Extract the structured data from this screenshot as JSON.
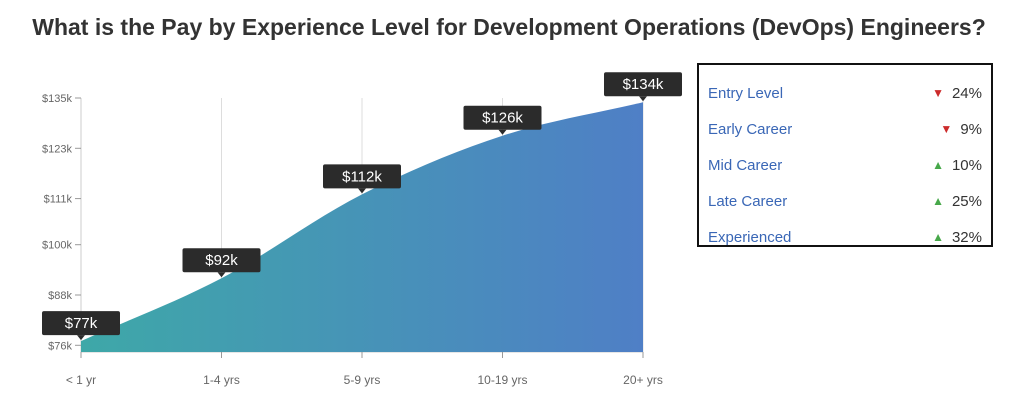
{
  "title": "What is the Pay by Experience Level for Development Operations (DevOps) Engineers?",
  "chart_data": {
    "type": "area",
    "categories": [
      "< 1 yr",
      "1-4 yrs",
      "5-9 yrs",
      "10-19 yrs",
      "20+ yrs"
    ],
    "values": [
      77,
      92,
      112,
      126,
      134
    ],
    "data_labels": [
      "$77k",
      "$92k",
      "$112k",
      "$126k",
      "$134k"
    ],
    "y_ticks": [
      76,
      88,
      100,
      111,
      123,
      135
    ],
    "y_tick_labels": [
      "$76k",
      "$88k",
      "$100k",
      "$111k",
      "$123k",
      "$135k"
    ],
    "ylim": [
      74.4,
      135
    ],
    "grid": "vertical",
    "colors": {
      "gradient_start": "#3ea8a8",
      "gradient_end": "#4f7fc6",
      "label_bg": "#2b2b2b"
    }
  },
  "legend": {
    "items": [
      {
        "label": "Entry Level",
        "direction": "down",
        "change": "24%"
      },
      {
        "label": "Early Career",
        "direction": "down",
        "change": "9%"
      },
      {
        "label": "Mid Career",
        "direction": "up",
        "change": "10%"
      },
      {
        "label": "Late Career",
        "direction": "up",
        "change": "25%"
      },
      {
        "label": "Experienced",
        "direction": "up",
        "change": "32%"
      }
    ],
    "colors": {
      "label": "#3a67b6",
      "down": "#cc2b2b",
      "up": "#47a84a"
    }
  }
}
